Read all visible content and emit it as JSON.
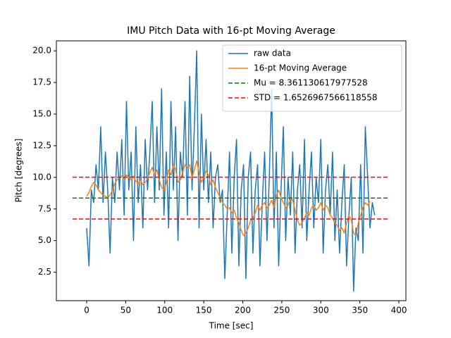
{
  "chart_data": {
    "type": "line",
    "title": "IMU Pitch Data with 16-pt Moving Average",
    "xlabel": "Time [sec]",
    "ylabel": "Pitch [degrees]",
    "xlim": [
      -38.8,
      409
    ],
    "ylim": [
      0.25,
      20.79
    ],
    "xticks": [
      0,
      50,
      100,
      150,
      200,
      250,
      300,
      350,
      400
    ],
    "yticks": [
      2.5,
      {
        "value": 5,
        "label": "5.0"
      },
      7.5,
      {
        "value": 10,
        "label": "10.0"
      },
      12.5,
      {
        "value": 15,
        "label": "15.0"
      },
      17.5,
      {
        "value": 20,
        "label": "20.0"
      }
    ],
    "legend": "upper right",
    "x": [
      0,
      3,
      6,
      9,
      12,
      15,
      18,
      21,
      24,
      27,
      30,
      33,
      36,
      39,
      42,
      45,
      48,
      51,
      54,
      57,
      60,
      63,
      66,
      69,
      72,
      75,
      78,
      81,
      84,
      87,
      90,
      93,
      96,
      99,
      102,
      105,
      108,
      111,
      114,
      117,
      120,
      123,
      126,
      129,
      132,
      135,
      138,
      141,
      144,
      147,
      150,
      153,
      156,
      159,
      162,
      165,
      168,
      171,
      174,
      177,
      180,
      183,
      186,
      189,
      192,
      195,
      198,
      201,
      204,
      207,
      210,
      213,
      216,
      219,
      222,
      225,
      228,
      231,
      234,
      237,
      240,
      243,
      246,
      249,
      252,
      255,
      258,
      261,
      264,
      267,
      270,
      273,
      276,
      279,
      282,
      285,
      288,
      291,
      294,
      297,
      300,
      303,
      306,
      309,
      312,
      315,
      318,
      321,
      324,
      327,
      330,
      333,
      336,
      339,
      342,
      345,
      348,
      351,
      354,
      357,
      360,
      363,
      366,
      369
    ],
    "series": [
      {
        "name": "raw data",
        "color": "#1f77b4",
        "values": [
          6,
          3,
          9,
          8,
          11,
          9,
          14,
          8,
          12,
          9,
          4,
          10,
          8,
          12,
          9,
          13,
          7,
          16,
          9,
          12,
          5,
          14,
          8,
          11,
          6,
          13,
          9,
          12,
          16,
          8,
          14,
          9,
          17,
          7,
          12,
          6,
          16,
          9,
          14,
          5,
          12,
          10,
          16,
          7,
          18,
          9,
          14,
          20,
          6,
          15,
          9,
          13,
          8,
          12,
          6,
          10,
          11,
          8,
          9,
          2,
          7,
          12,
          4,
          10,
          13,
          3,
          9,
          11,
          2,
          10,
          12,
          4,
          9,
          11,
          3,
          8,
          12,
          5,
          10,
          17,
          6,
          12,
          3,
          9,
          14,
          5,
          10,
          7,
          12,
          4,
          9,
          11,
          6,
          13,
          5,
          9,
          12,
          6,
          10,
          8,
          13,
          4,
          9,
          11,
          7,
          12,
          5,
          9,
          4,
          8,
          11,
          3,
          7,
          10,
          1,
          6,
          5,
          11,
          4,
          14,
          10,
          6,
          8,
          7
        ]
      },
      {
        "name": "16-pt Moving Average",
        "color": "#ff7f0e",
        "values": [
          8.5,
          8.8,
          9.3,
          9.6,
          9.4,
          9.0,
          8.8,
          8.6,
          8.5,
          8.4,
          8.6,
          9.0,
          9.5,
          9.8,
          10.0,
          10.1,
          9.9,
          10.2,
          10.0,
          9.8,
          10.1,
          9.7,
          9.5,
          9.8,
          9.4,
          9.6,
          9.9,
          10.4,
          10.8,
          10.2,
          10.6,
          9.8,
          9.2,
          9.0,
          9.6,
          10.6,
          10.2,
          11.0,
          10.6,
          9.6,
          9.8,
          10.4,
          11.0,
          10.8,
          11.0,
          10.0,
          10.6,
          11.3,
          10.4,
          9.6,
          10.0,
          10.5,
          10.2,
          9.4,
          9.8,
          9.2,
          8.8,
          8.4,
          8.0,
          7.8,
          7.5,
          7.6,
          7.2,
          7.4,
          6.8,
          6.4,
          5.8,
          5.4,
          5.6,
          6.0,
          6.6,
          6.8,
          7.2,
          7.8,
          7.4,
          7.8,
          8.0,
          7.6,
          7.8,
          8.2,
          7.6,
          8.6,
          9.0,
          8.4,
          8.0,
          7.6,
          7.8,
          8.4,
          8.2,
          7.4,
          6.6,
          6.2,
          6.4,
          6.8,
          7.2,
          7.0,
          7.6,
          7.8,
          7.4,
          7.6,
          8.0,
          7.4,
          7.8,
          7.6,
          7.0,
          6.8,
          6.4,
          6.2,
          5.8,
          6.0,
          5.6,
          6.4,
          7.0,
          6.6,
          5.6,
          5.4,
          6.4,
          7.0,
          7.6,
          8.0,
          7.8,
          8.1,
          null,
          null
        ]
      }
    ],
    "hlines": [
      {
        "name": "Mu = 8.361130617977528",
        "color": "green",
        "xrange": [
          -18,
          387
        ],
        "y": [
          8.361130617977528
        ]
      },
      {
        "name": "STD = 1.6526967566118558",
        "color": "red",
        "xrange": [
          -18,
          387
        ],
        "y": [
          10.013827374589384,
          6.708433861365672
        ]
      }
    ]
  }
}
